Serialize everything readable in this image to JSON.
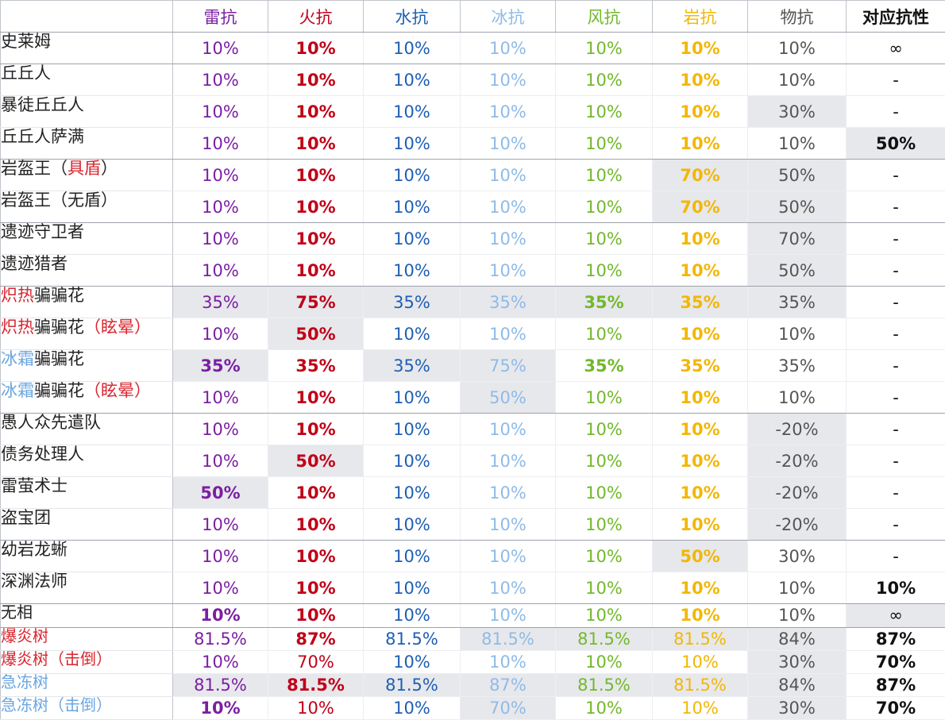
{
  "colors": {
    "thunder": "#7b1fa2",
    "fire": "#c00018",
    "water": "#1e5fb5",
    "ice": "#8fbbe6",
    "wind": "#72b82c",
    "rock": "#f2b705",
    "physical": "#555555",
    "corresponding": "#111111"
  },
  "headers": [
    "雷抗",
    "火抗",
    "水抗",
    "冰抗",
    "风抗",
    "岩抗",
    "物抗",
    "对应抗性"
  ],
  "rows": [
    {
      "name": [
        {
          "t": "史莱姆"
        }
      ],
      "values": [
        "10%",
        "10%",
        "10%",
        "10%",
        "10%",
        "10%",
        "10%",
        "∞"
      ],
      "shade": [],
      "bold": [
        1,
        5
      ],
      "group_end": true
    },
    {
      "name": [
        {
          "t": "丘丘人"
        }
      ],
      "values": [
        "10%",
        "10%",
        "10%",
        "10%",
        "10%",
        "10%",
        "10%",
        "-"
      ],
      "shade": [],
      "bold": [
        1,
        5
      ],
      "group_end": false
    },
    {
      "name": [
        {
          "t": "暴徒丘丘人"
        }
      ],
      "values": [
        "10%",
        "10%",
        "10%",
        "10%",
        "10%",
        "10%",
        "30%",
        "-"
      ],
      "shade": [
        6
      ],
      "bold": [
        1,
        5
      ],
      "group_end": false
    },
    {
      "name": [
        {
          "t": "丘丘人萨满"
        }
      ],
      "values": [
        "10%",
        "10%",
        "10%",
        "10%",
        "10%",
        "10%",
        "10%",
        "50%"
      ],
      "shade": [
        7
      ],
      "bold": [
        1,
        5,
        7
      ],
      "group_end": true
    },
    {
      "name": [
        {
          "t": "岩盔王（"
        },
        {
          "t": "具盾",
          "c": "r"
        },
        {
          "t": "）"
        }
      ],
      "values": [
        "10%",
        "10%",
        "10%",
        "10%",
        "10%",
        "70%",
        "50%",
        "-"
      ],
      "shade": [
        5,
        6
      ],
      "bold": [
        1,
        5
      ],
      "group_end": false
    },
    {
      "name": [
        {
          "t": "岩盔王（无盾）"
        }
      ],
      "values": [
        "10%",
        "10%",
        "10%",
        "10%",
        "10%",
        "70%",
        "50%",
        "-"
      ],
      "shade": [
        5,
        6
      ],
      "bold": [
        1,
        5
      ],
      "group_end": true
    },
    {
      "name": [
        {
          "t": "遗迹守卫者"
        }
      ],
      "values": [
        "10%",
        "10%",
        "10%",
        "10%",
        "10%",
        "10%",
        "70%",
        "-"
      ],
      "shade": [
        6
      ],
      "bold": [
        1,
        5
      ],
      "group_end": false
    },
    {
      "name": [
        {
          "t": "遗迹猎者"
        }
      ],
      "values": [
        "10%",
        "10%",
        "10%",
        "10%",
        "10%",
        "10%",
        "50%",
        "-"
      ],
      "shade": [
        6
      ],
      "bold": [
        1,
        5
      ],
      "group_end": true
    },
    {
      "name": [
        {
          "t": "炽热",
          "c": "r"
        },
        {
          "t": "骗骗花"
        }
      ],
      "values": [
        "35%",
        "75%",
        "35%",
        "35%",
        "35%",
        "35%",
        "35%",
        "-"
      ],
      "shade": [
        0,
        1,
        2,
        3,
        4,
        5,
        6
      ],
      "bold": [
        1,
        4,
        5
      ],
      "group_end": false
    },
    {
      "name": [
        {
          "t": "炽热",
          "c": "r"
        },
        {
          "t": "骗骗花"
        },
        {
          "t": "（眩晕）",
          "c": "r"
        }
      ],
      "values": [
        "10%",
        "50%",
        "10%",
        "10%",
        "10%",
        "10%",
        "10%",
        "-"
      ],
      "shade": [
        1
      ],
      "bold": [
        1,
        5
      ],
      "group_end": false
    },
    {
      "name": [
        {
          "t": "冰霜",
          "c": "b"
        },
        {
          "t": "骗骗花"
        }
      ],
      "values": [
        "35%",
        "35%",
        "35%",
        "75%",
        "35%",
        "35%",
        "35%",
        "-"
      ],
      "shade": [
        0,
        2,
        3
      ],
      "bold": [
        0,
        1,
        4,
        5
      ],
      "group_end": false
    },
    {
      "name": [
        {
          "t": "冰霜",
          "c": "b"
        },
        {
          "t": "骗骗花"
        },
        {
          "t": "（眩晕）",
          "c": "r"
        }
      ],
      "values": [
        "10%",
        "10%",
        "10%",
        "50%",
        "10%",
        "10%",
        "10%",
        "-"
      ],
      "shade": [
        3
      ],
      "bold": [
        1,
        5
      ],
      "group_end": true
    },
    {
      "name": [
        {
          "t": "愚人众先遣队"
        }
      ],
      "values": [
        "10%",
        "10%",
        "10%",
        "10%",
        "10%",
        "10%",
        "-20%",
        "-"
      ],
      "shade": [
        6
      ],
      "bold": [
        1,
        5
      ],
      "group_end": false
    },
    {
      "name": [
        {
          "t": "债务处理人"
        }
      ],
      "values": [
        "10%",
        "50%",
        "10%",
        "10%",
        "10%",
        "10%",
        "-20%",
        "-"
      ],
      "shade": [
        1,
        6
      ],
      "bold": [
        1,
        5
      ],
      "group_end": false
    },
    {
      "name": [
        {
          "t": "雷萤术士"
        }
      ],
      "values": [
        "50%",
        "10%",
        "10%",
        "10%",
        "10%",
        "10%",
        "-20%",
        "-"
      ],
      "shade": [
        0,
        6
      ],
      "bold": [
        0,
        1,
        5
      ],
      "group_end": false
    },
    {
      "name": [
        {
          "t": "盗宝团"
        }
      ],
      "values": [
        "10%",
        "10%",
        "10%",
        "10%",
        "10%",
        "10%",
        "-20%",
        "-"
      ],
      "shade": [
        6
      ],
      "bold": [
        1,
        5
      ],
      "group_end": true
    },
    {
      "name": [
        {
          "t": "幼岩龙蜥"
        }
      ],
      "values": [
        "10%",
        "10%",
        "10%",
        "10%",
        "10%",
        "50%",
        "30%",
        "-"
      ],
      "shade": [
        5
      ],
      "bold": [
        1,
        5
      ],
      "group_end": false
    },
    {
      "name": [
        {
          "t": "深渊法师"
        }
      ],
      "values": [
        "10%",
        "10%",
        "10%",
        "10%",
        "10%",
        "10%",
        "10%",
        "10%"
      ],
      "shade": [],
      "bold": [
        1,
        5,
        7
      ],
      "group_end": true
    },
    {
      "name": [
        {
          "t": "无相"
        }
      ],
      "values": [
        "10%",
        "10%",
        "10%",
        "10%",
        "10%",
        "10%",
        "10%",
        "∞"
      ],
      "shade": [
        7
      ],
      "bold": [
        0,
        1,
        5
      ],
      "group_end": true
    },
    {
      "name": [
        {
          "t": "爆炎树",
          "c": "r"
        }
      ],
      "values": [
        "81.5%",
        "87%",
        "81.5%",
        "81.5%",
        "81.5%",
        "81.5%",
        "84%",
        "87%"
      ],
      "shade": [
        3,
        4,
        5,
        6
      ],
      "bold": [
        1,
        7
      ],
      "group_end": false
    },
    {
      "name": [
        {
          "t": "爆炎树（击倒）",
          "c": "r"
        }
      ],
      "values": [
        "10%",
        "70%",
        "10%",
        "10%",
        "10%",
        "10%",
        "30%",
        "70%"
      ],
      "shade": [
        6
      ],
      "bold": [
        7
      ],
      "group_end": false
    },
    {
      "name": [
        {
          "t": "急冻树",
          "c": "b"
        }
      ],
      "values": [
        "81.5%",
        "81.5%",
        "81.5%",
        "87%",
        "81.5%",
        "81.5%",
        "84%",
        "87%"
      ],
      "shade": [
        0,
        1,
        2,
        3,
        4,
        5,
        6
      ],
      "bold": [
        1,
        7
      ],
      "group_end": false
    },
    {
      "name": [
        {
          "t": "急冻树（击倒）",
          "c": "b"
        }
      ],
      "values": [
        "10%",
        "10%",
        "10%",
        "70%",
        "10%",
        "10%",
        "30%",
        "70%"
      ],
      "shade": [
        3,
        6
      ],
      "bold": [
        0,
        7
      ],
      "group_end": false
    }
  ]
}
